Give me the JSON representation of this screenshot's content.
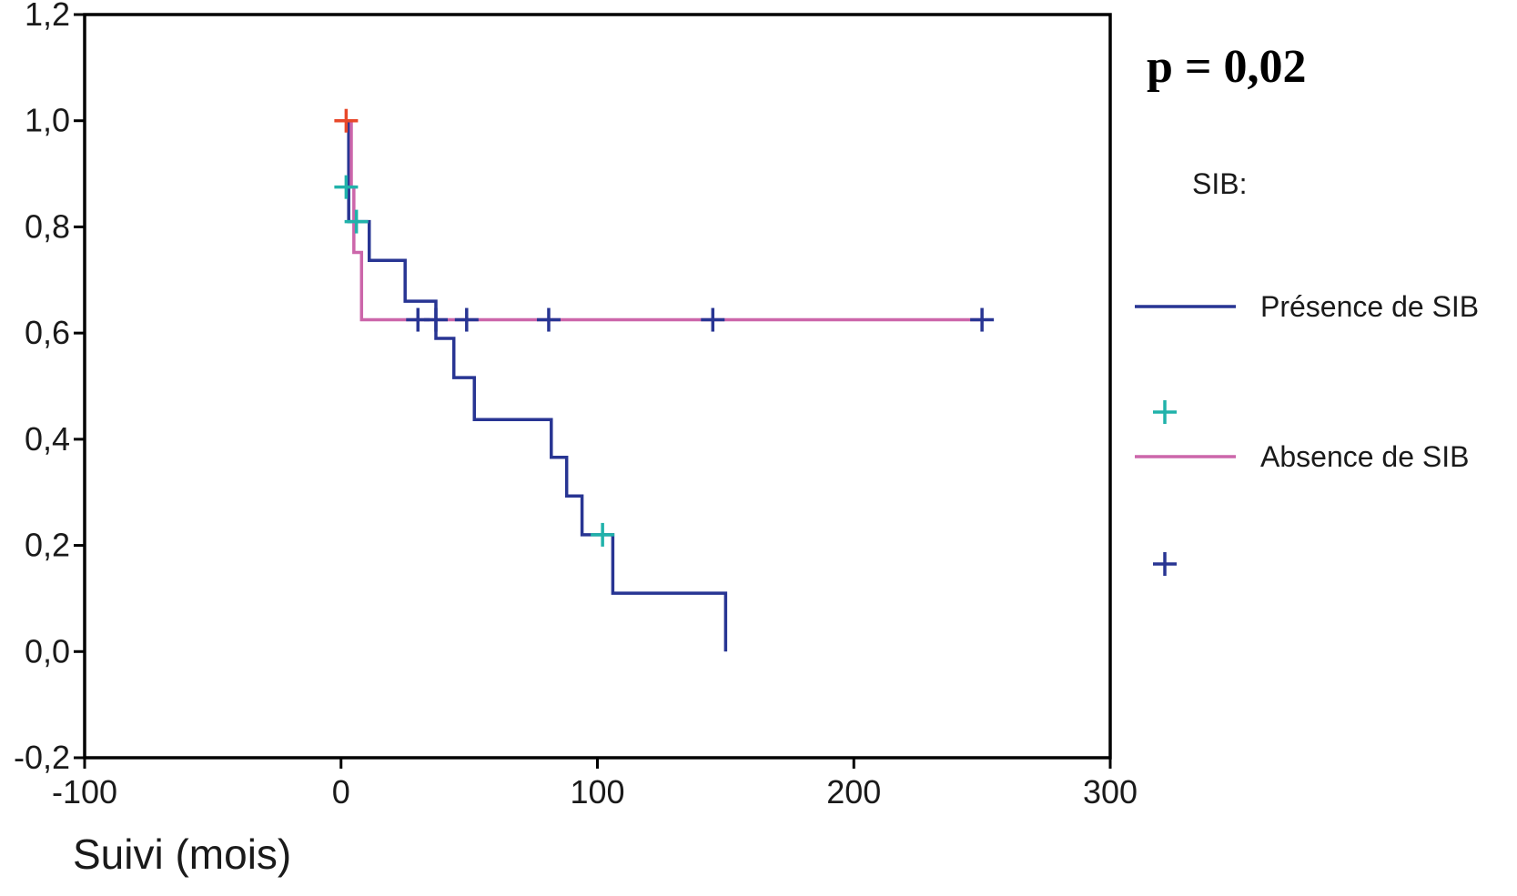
{
  "chart_data": {
    "type": "line",
    "subtype": "kaplan-meier step",
    "xlabel": "Suivi (mois)",
    "ylabel": "",
    "xlim": [
      -100,
      300
    ],
    "ylim": [
      -0.2,
      1.2
    ],
    "x_ticks": [
      -100,
      0,
      100,
      200,
      300
    ],
    "x_tick_labels": [
      "-100",
      "0",
      "100",
      "200",
      "300"
    ],
    "y_ticks": [
      -0.2,
      0.0,
      0.2,
      0.4,
      0.6,
      0.8,
      1.0,
      1.2
    ],
    "y_tick_labels": [
      "-0,2",
      "0,0",
      "0,2",
      "0,4",
      "0,6",
      "0,8",
      "1,0",
      "1,2"
    ],
    "grid": false,
    "annotation": "p = 0,02",
    "legend": {
      "title": "SIB:",
      "placement": "right",
      "entries": [
        {
          "label": "Présence de SIB",
          "kind": "line",
          "color": "#283593"
        },
        {
          "label": "",
          "kind": "censor-marker",
          "color": "#20B2AA"
        },
        {
          "label": "Absence de SIB",
          "kind": "line",
          "color": "#CC66AA"
        },
        {
          "label": "",
          "kind": "censor-marker",
          "color": "#283593"
        }
      ]
    },
    "series": [
      {
        "name": "Présence de SIB",
        "color": "#283593",
        "censor_color": "#20B2AA",
        "steps": [
          [
            2,
            1.0
          ],
          [
            3,
            0.81
          ],
          [
            11,
            0.737
          ],
          [
            25,
            0.66
          ],
          [
            37,
            0.59
          ],
          [
            44,
            0.516
          ],
          [
            52,
            0.437
          ],
          [
            82,
            0.366
          ],
          [
            88,
            0.293
          ],
          [
            94,
            0.22
          ],
          [
            106,
            0.11
          ],
          [
            150,
            0.0
          ]
        ],
        "censored": [
          [
            2,
            0.875
          ],
          [
            6,
            0.81
          ],
          [
            102,
            0.22
          ]
        ]
      },
      {
        "name": "Absence de SIB",
        "color": "#CC66AA",
        "censor_color": "#283593",
        "steps": [
          [
            2,
            1.0
          ],
          [
            4,
            0.875
          ],
          [
            5,
            0.752
          ],
          [
            8,
            0.625
          ],
          [
            250,
            0.625
          ]
        ],
        "censored": [
          [
            30,
            0.625
          ],
          [
            37,
            0.625
          ],
          [
            49,
            0.625
          ],
          [
            81,
            0.625
          ],
          [
            145,
            0.625
          ],
          [
            250,
            0.625
          ]
        ]
      }
    ],
    "extra_markers": [
      {
        "x": 2,
        "y": 1.0,
        "color": "#E8482A"
      }
    ]
  }
}
